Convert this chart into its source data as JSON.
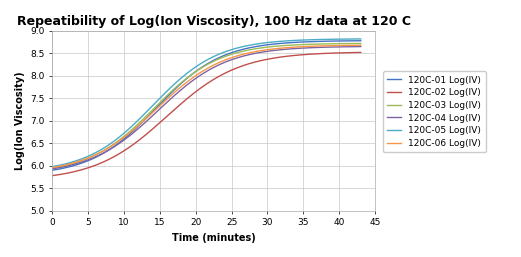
{
  "title": "Repeatibility of Log(Ion Viscosity), 100 Hz data at 120 C",
  "xlabel": "Time (minutes)",
  "ylabel": "Log(Ion Viscosity)",
  "xlim": [
    0,
    45
  ],
  "ylim": [
    5,
    9
  ],
  "yticks": [
    5,
    5.5,
    6,
    6.5,
    7,
    7.5,
    8,
    8.5,
    9
  ],
  "xticks": [
    0,
    5,
    10,
    15,
    20,
    25,
    30,
    35,
    40,
    45
  ],
  "series": [
    {
      "label": "120C-01 Log(IV)",
      "color": "#4472C4",
      "start": 5.9,
      "inflection": 14.5,
      "steepness": 0.22,
      "end": 8.78
    },
    {
      "label": "120C-02 Log(IV)",
      "color": "#C0504D",
      "start": 5.78,
      "inflection": 16.0,
      "steepness": 0.2,
      "end": 8.52
    },
    {
      "label": "120C-03 Log(IV)",
      "color": "#9BBB59",
      "start": 5.95,
      "inflection": 14.2,
      "steepness": 0.22,
      "end": 8.72
    },
    {
      "label": "120C-04 Log(IV)",
      "color": "#8064A2",
      "start": 5.93,
      "inflection": 14.8,
      "steepness": 0.21,
      "end": 8.65
    },
    {
      "label": "120C-05 Log(IV)",
      "color": "#4BACC6",
      "start": 5.98,
      "inflection": 14.0,
      "steepness": 0.22,
      "end": 8.82
    },
    {
      "label": "120C-06 Log(IV)",
      "color": "#F79646",
      "start": 5.96,
      "inflection": 14.5,
      "steepness": 0.21,
      "end": 8.68
    }
  ],
  "background_color": "#FFFFFF",
  "plot_bg_color": "#FFFFFF",
  "grid_color": "#C8C8C8",
  "title_fontsize": 9,
  "label_fontsize": 7,
  "tick_fontsize": 6.5,
  "legend_fontsize": 6.5,
  "linewidth": 1.0
}
